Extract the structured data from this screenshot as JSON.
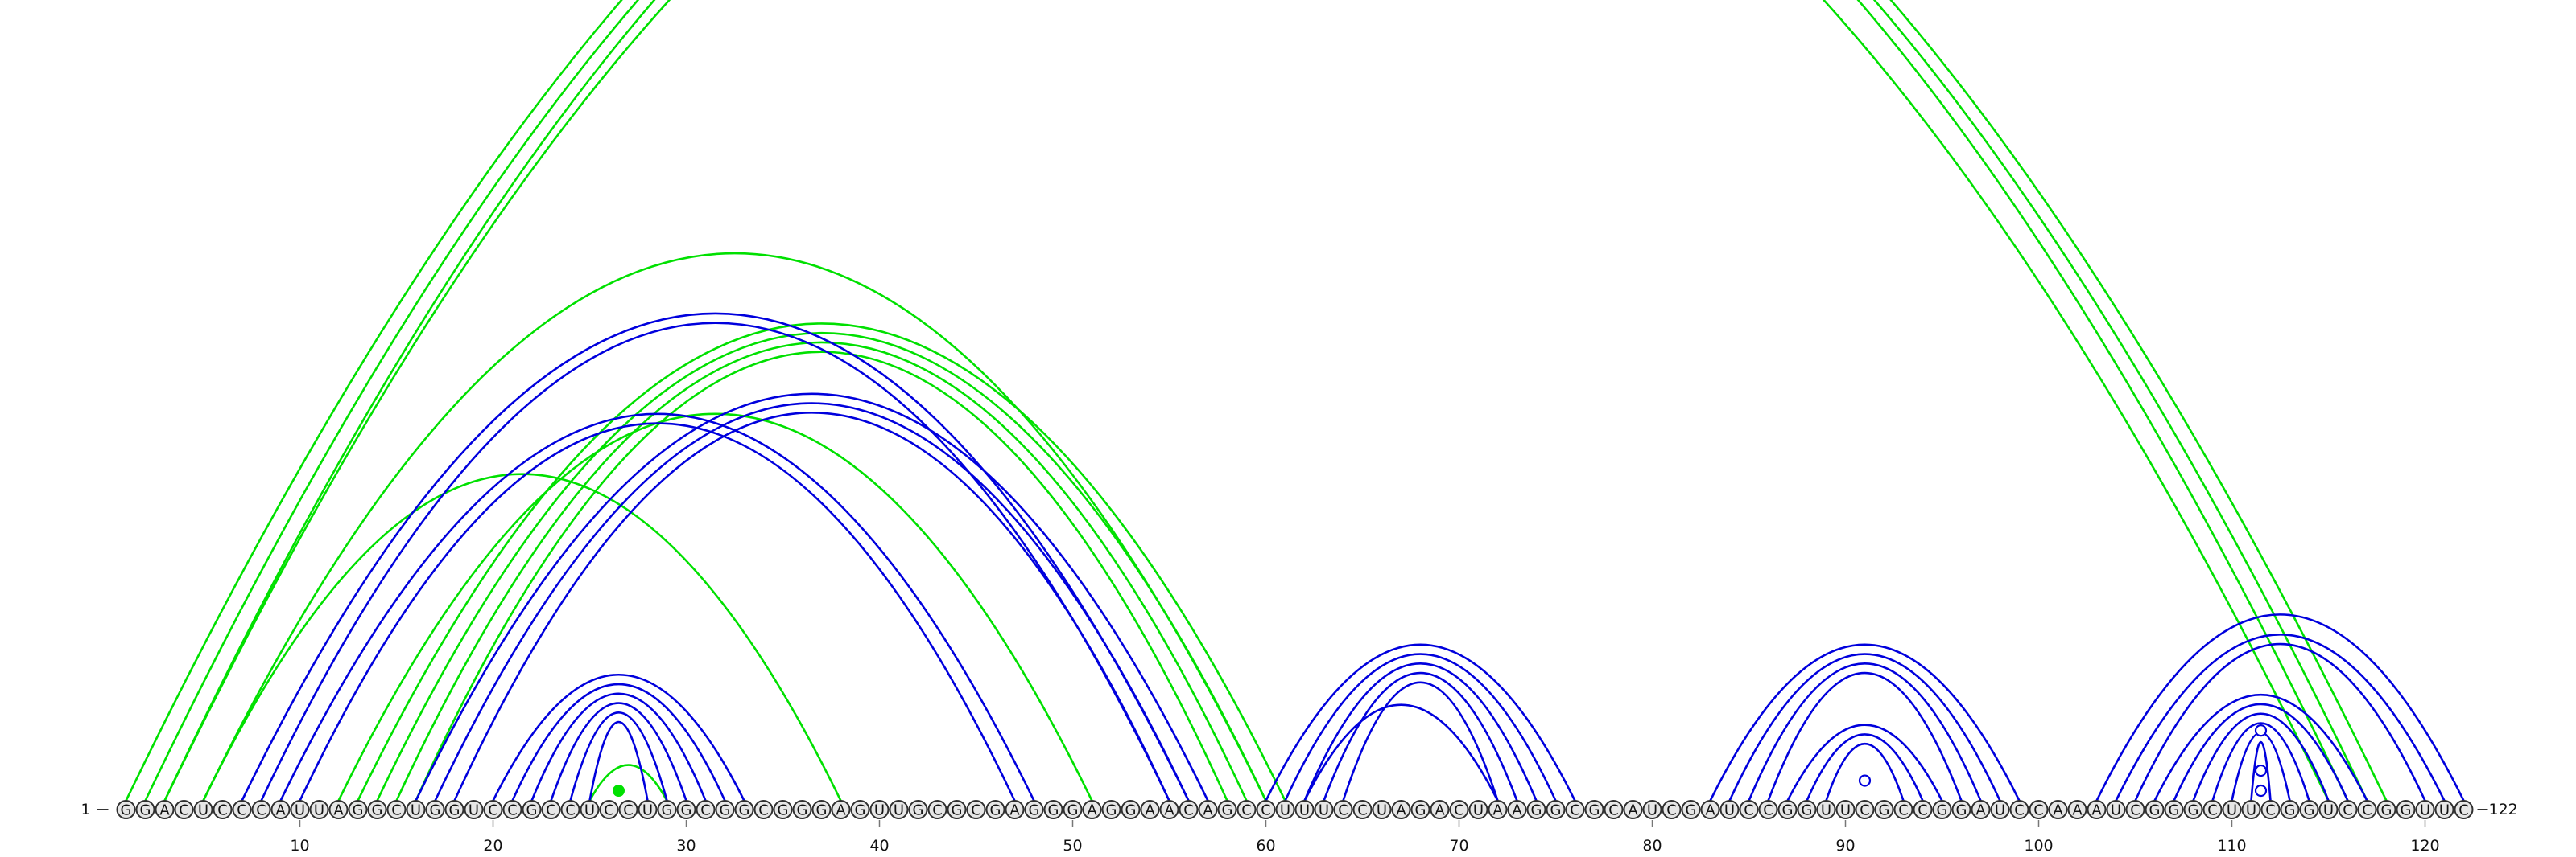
{
  "sequence": "GGACUCCCAUUAGGCUGGUCCGCCUCCUGGCGGCGGGAGUUGCGCGAGGGAGGAACAGCCUUUCCUAGACUAAGGCGCAUCGAUCCGGUUCGCCGGAUCCAAAUCGGGCUUCGGUCCGGUUC",
  "start_label": "1",
  "end_label": "122",
  "axis_ticks": [
    10,
    20,
    30,
    40,
    50,
    60,
    70,
    80,
    90,
    100,
    110,
    120
  ],
  "colors": {
    "blue": "#0000dd",
    "green": "#00e000",
    "circle_fill": "#e6e6e6",
    "circle_stroke": "#303030"
  },
  "blue_helices": [
    {
      "start": 7,
      "end": 56,
      "length": 2
    },
    {
      "start": 9,
      "end": 48,
      "length": 2
    },
    {
      "start": 16,
      "end": 57,
      "length": 3
    },
    {
      "start": 20,
      "end": 33,
      "length": 6
    },
    {
      "start": 60,
      "end": 76,
      "length": 5
    },
    {
      "start": 62,
      "end": 72,
      "length": 1
    },
    {
      "start": 83,
      "end": 99,
      "length": 4
    },
    {
      "start": 87,
      "end": 95,
      "length": 3
    },
    {
      "start": 103,
      "end": 122,
      "length": 1
    },
    {
      "start": 104,
      "end": 121,
      "length": 2
    },
    {
      "start": 106,
      "end": 117,
      "length": 6
    }
  ],
  "green_helices": [
    {
      "start": 1,
      "end": 118,
      "length": 3
    },
    {
      "start": 3,
      "end": 115,
      "length": 1
    },
    {
      "start": 5,
      "end": 60,
      "length": 1
    },
    {
      "start": 5,
      "end": 38,
      "length": 1
    },
    {
      "start": 13,
      "end": 61,
      "length": 4
    },
    {
      "start": 12,
      "end": 51,
      "length": 1
    },
    {
      "start": 25,
      "end": 29,
      "length": 1
    }
  ],
  "open_markers": [
    {
      "start": 90,
      "end": 92
    },
    {
      "start": 108,
      "end": 115
    },
    {
      "start": 110,
      "end": 113
    },
    {
      "start": 111,
      "end": 112
    }
  ],
  "filled_markers": [
    {
      "start": 26,
      "end": 27
    }
  ]
}
